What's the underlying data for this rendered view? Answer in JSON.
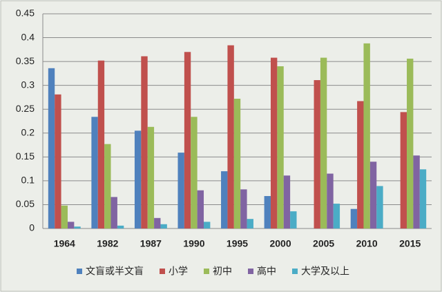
{
  "chart_data": {
    "type": "bar",
    "categories": [
      "1964",
      "1982",
      "1987",
      "1990",
      "1995",
      "2000",
      "2005",
      "2010",
      "2015"
    ],
    "series": [
      {
        "name": "文盲或半文盲",
        "color": "#4f81bd",
        "values": [
          0.336,
          0.234,
          0.205,
          0.159,
          0.12,
          0.068,
          null,
          0.041,
          null
        ]
      },
      {
        "name": "小学",
        "color": "#c0504d",
        "values": [
          0.281,
          0.352,
          0.361,
          0.37,
          0.384,
          0.358,
          0.311,
          0.267,
          0.244
        ]
      },
      {
        "name": "初中",
        "color": "#9bbb59",
        "values": [
          0.048,
          0.177,
          0.213,
          0.234,
          0.272,
          0.34,
          0.358,
          0.388,
          0.356
        ]
      },
      {
        "name": "高中",
        "color": "#8064a2",
        "values": [
          0.014,
          0.066,
          0.022,
          0.08,
          0.082,
          0.111,
          0.115,
          0.14,
          0.153
        ]
      },
      {
        "name": "大学及以上",
        "color": "#4bacc6",
        "values": [
          0.004,
          0.006,
          0.009,
          0.014,
          0.02,
          0.036,
          0.052,
          0.089,
          0.124
        ]
      }
    ],
    "ylim": [
      0,
      0.45
    ],
    "yticks": [
      0,
      0.05,
      0.1,
      0.15,
      0.2,
      0.25,
      0.3,
      0.35,
      0.4,
      0.45
    ],
    "grid": true
  }
}
